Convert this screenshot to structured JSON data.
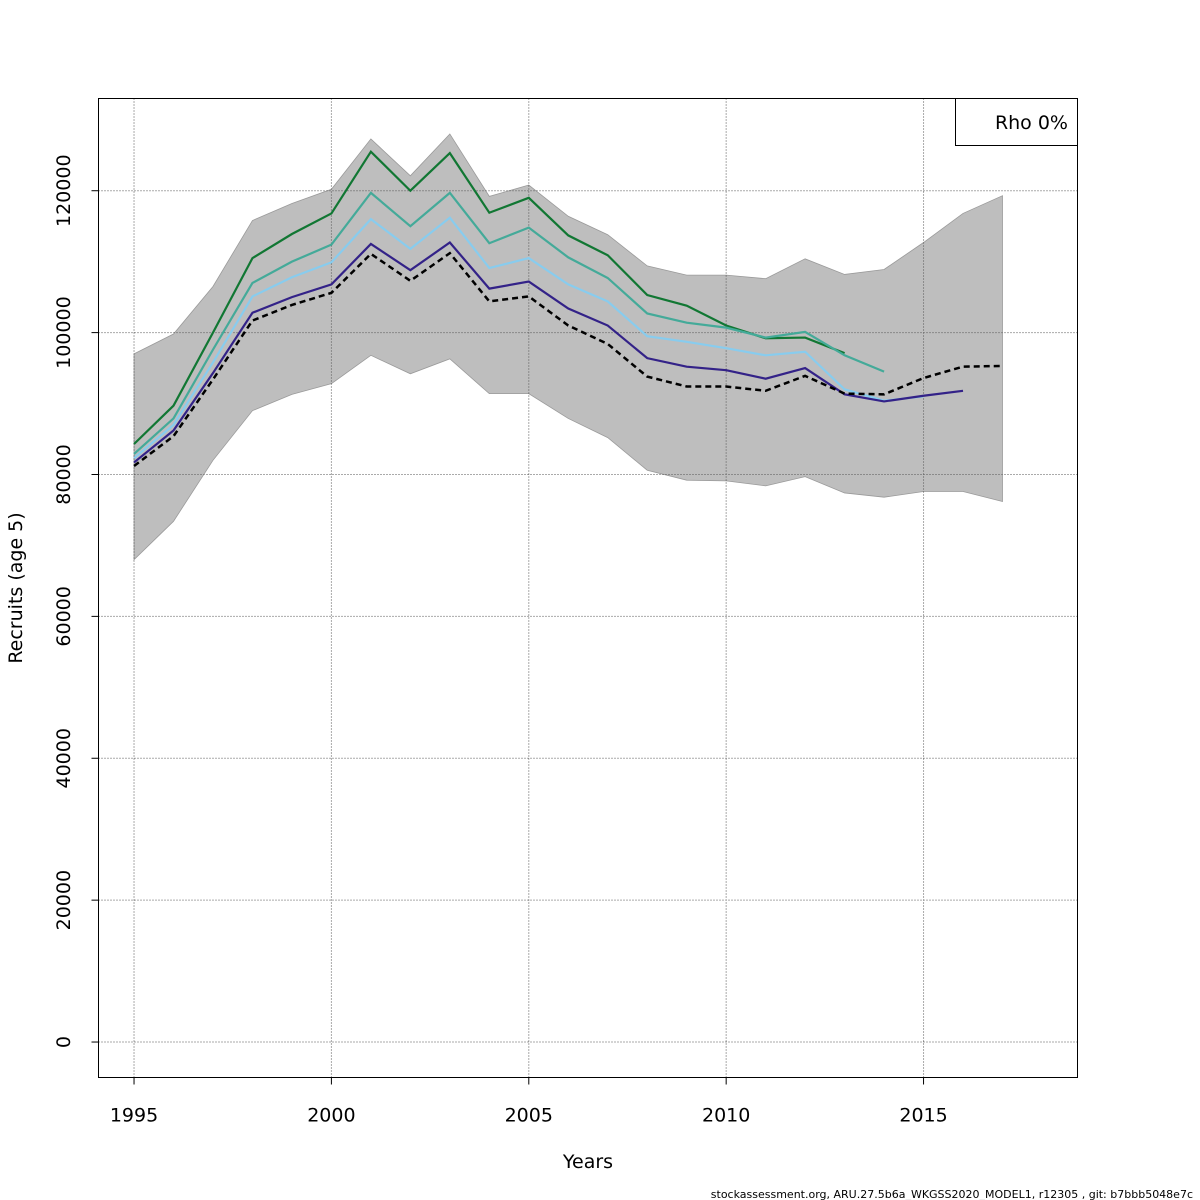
{
  "chart_data": {
    "type": "line",
    "xlabel": "Years",
    "ylabel": "Recruits (age 5)",
    "xlim": [
      1994.1,
      2018.9
    ],
    "ylim": [
      -5000,
      133000
    ],
    "x_ticks": [
      1995,
      2000,
      2005,
      2010,
      2015
    ],
    "x_tick_labels": [
      "1995",
      "2000",
      "2005",
      "2010",
      "2015"
    ],
    "y_ticks": [
      0,
      20000,
      40000,
      60000,
      80000,
      100000,
      120000
    ],
    "y_tick_labels": [
      "0",
      "20000",
      "40000",
      "60000",
      "80000",
      "100000",
      "120000"
    ],
    "grid": true,
    "legend": {
      "placement": "top-right",
      "entries": [
        "Rho 0%"
      ]
    },
    "confidence_band": {
      "color": "#bebebe",
      "x": [
        1995,
        1996,
        1997,
        1998,
        1999,
        2000,
        2001,
        2002,
        2003,
        2004,
        2005,
        2006,
        2007,
        2008,
        2009,
        2010,
        2011,
        2012,
        2013,
        2014,
        2015,
        2016,
        2017
      ],
      "lower": [
        68000,
        73400,
        82000,
        89000,
        91300,
        92800,
        96800,
        94200,
        96300,
        91400,
        91400,
        87900,
        85200,
        80600,
        79200,
        79100,
        78400,
        79700,
        77400,
        76800,
        77600,
        77600,
        76200
      ],
      "upper": [
        97000,
        99800,
        106500,
        115800,
        118200,
        120200,
        127300,
        122100,
        128000,
        119200,
        120800,
        116400,
        113800,
        109400,
        108100,
        108100,
        107600,
        110400,
        108200,
        108900,
        112700,
        116800,
        119300
      ]
    },
    "series": [
      {
        "color": "#117733",
        "dashed": false,
        "x": [
          1995,
          1996,
          1997,
          1998,
          1999,
          2000,
          2001,
          2002,
          2003,
          2004,
          2005,
          2006,
          2007,
          2008,
          2009,
          2010,
          2011,
          2012,
          2013
        ],
        "values": [
          84300,
          89700,
          100000,
          110500,
          113900,
          116800,
          125500,
          120000,
          125300,
          116900,
          119000,
          113700,
          110900,
          105300,
          103800,
          101000,
          99200,
          99300,
          97100
        ]
      },
      {
        "color": "#44AA99",
        "dashed": false,
        "x": [
          1995,
          1996,
          1997,
          1998,
          1999,
          2000,
          2001,
          2002,
          2003,
          2004,
          2005,
          2006,
          2007,
          2008,
          2009,
          2010,
          2011,
          2012,
          2013,
          2014
        ],
        "values": [
          82900,
          87900,
          97600,
          107000,
          110000,
          112400,
          119700,
          115000,
          119700,
          112600,
          114800,
          110600,
          107700,
          102700,
          101400,
          100700,
          99300,
          100100,
          96800,
          94500
        ]
      },
      {
        "color": "#88CCEE",
        "dashed": false,
        "x": [
          1995,
          1996,
          1997,
          1998,
          1999,
          2000,
          2001,
          2002,
          2003,
          2004,
          2005,
          2006,
          2007,
          2008,
          2009,
          2010,
          2011,
          2012,
          2013,
          2014,
          2015
        ],
        "values": [
          82300,
          87000,
          95800,
          105100,
          107800,
          109900,
          116000,
          111800,
          116200,
          109100,
          110500,
          106800,
          104400,
          99500,
          98700,
          97800,
          96800,
          97300,
          92000,
          90400,
          91000
        ]
      },
      {
        "color": "#332288",
        "dashed": false,
        "x": [
          1995,
          1996,
          1997,
          1998,
          1999,
          2000,
          2001,
          2002,
          2003,
          2004,
          2005,
          2006,
          2007,
          2008,
          2009,
          2010,
          2011,
          2012,
          2013,
          2014,
          2015,
          2016
        ],
        "values": [
          81700,
          86200,
          94300,
          102800,
          105000,
          106800,
          112500,
          108800,
          112700,
          106200,
          107200,
          103400,
          101000,
          96400,
          95200,
          94700,
          93500,
          95000,
          91300,
          90300,
          91100,
          91800
        ]
      },
      {
        "color": "#000000",
        "dashed": true,
        "x": [
          1995,
          1996,
          1997,
          1998,
          1999,
          2000,
          2001,
          2002,
          2003,
          2004,
          2005,
          2006,
          2007,
          2008,
          2009,
          2010,
          2011,
          2012,
          2013,
          2014,
          2015,
          2016,
          2017
        ],
        "values": [
          81200,
          85400,
          93400,
          101700,
          103900,
          105600,
          111100,
          107300,
          111200,
          104400,
          105100,
          101000,
          98400,
          93800,
          92400,
          92400,
          91800,
          93900,
          91400,
          91300,
          93600,
          95200,
          95300
        ]
      }
    ]
  },
  "footer": "stockassessment.org, ARU.27.5b6a_WKGSS2020_MODEL1, r12305 , git: b7bbb5048e7c"
}
